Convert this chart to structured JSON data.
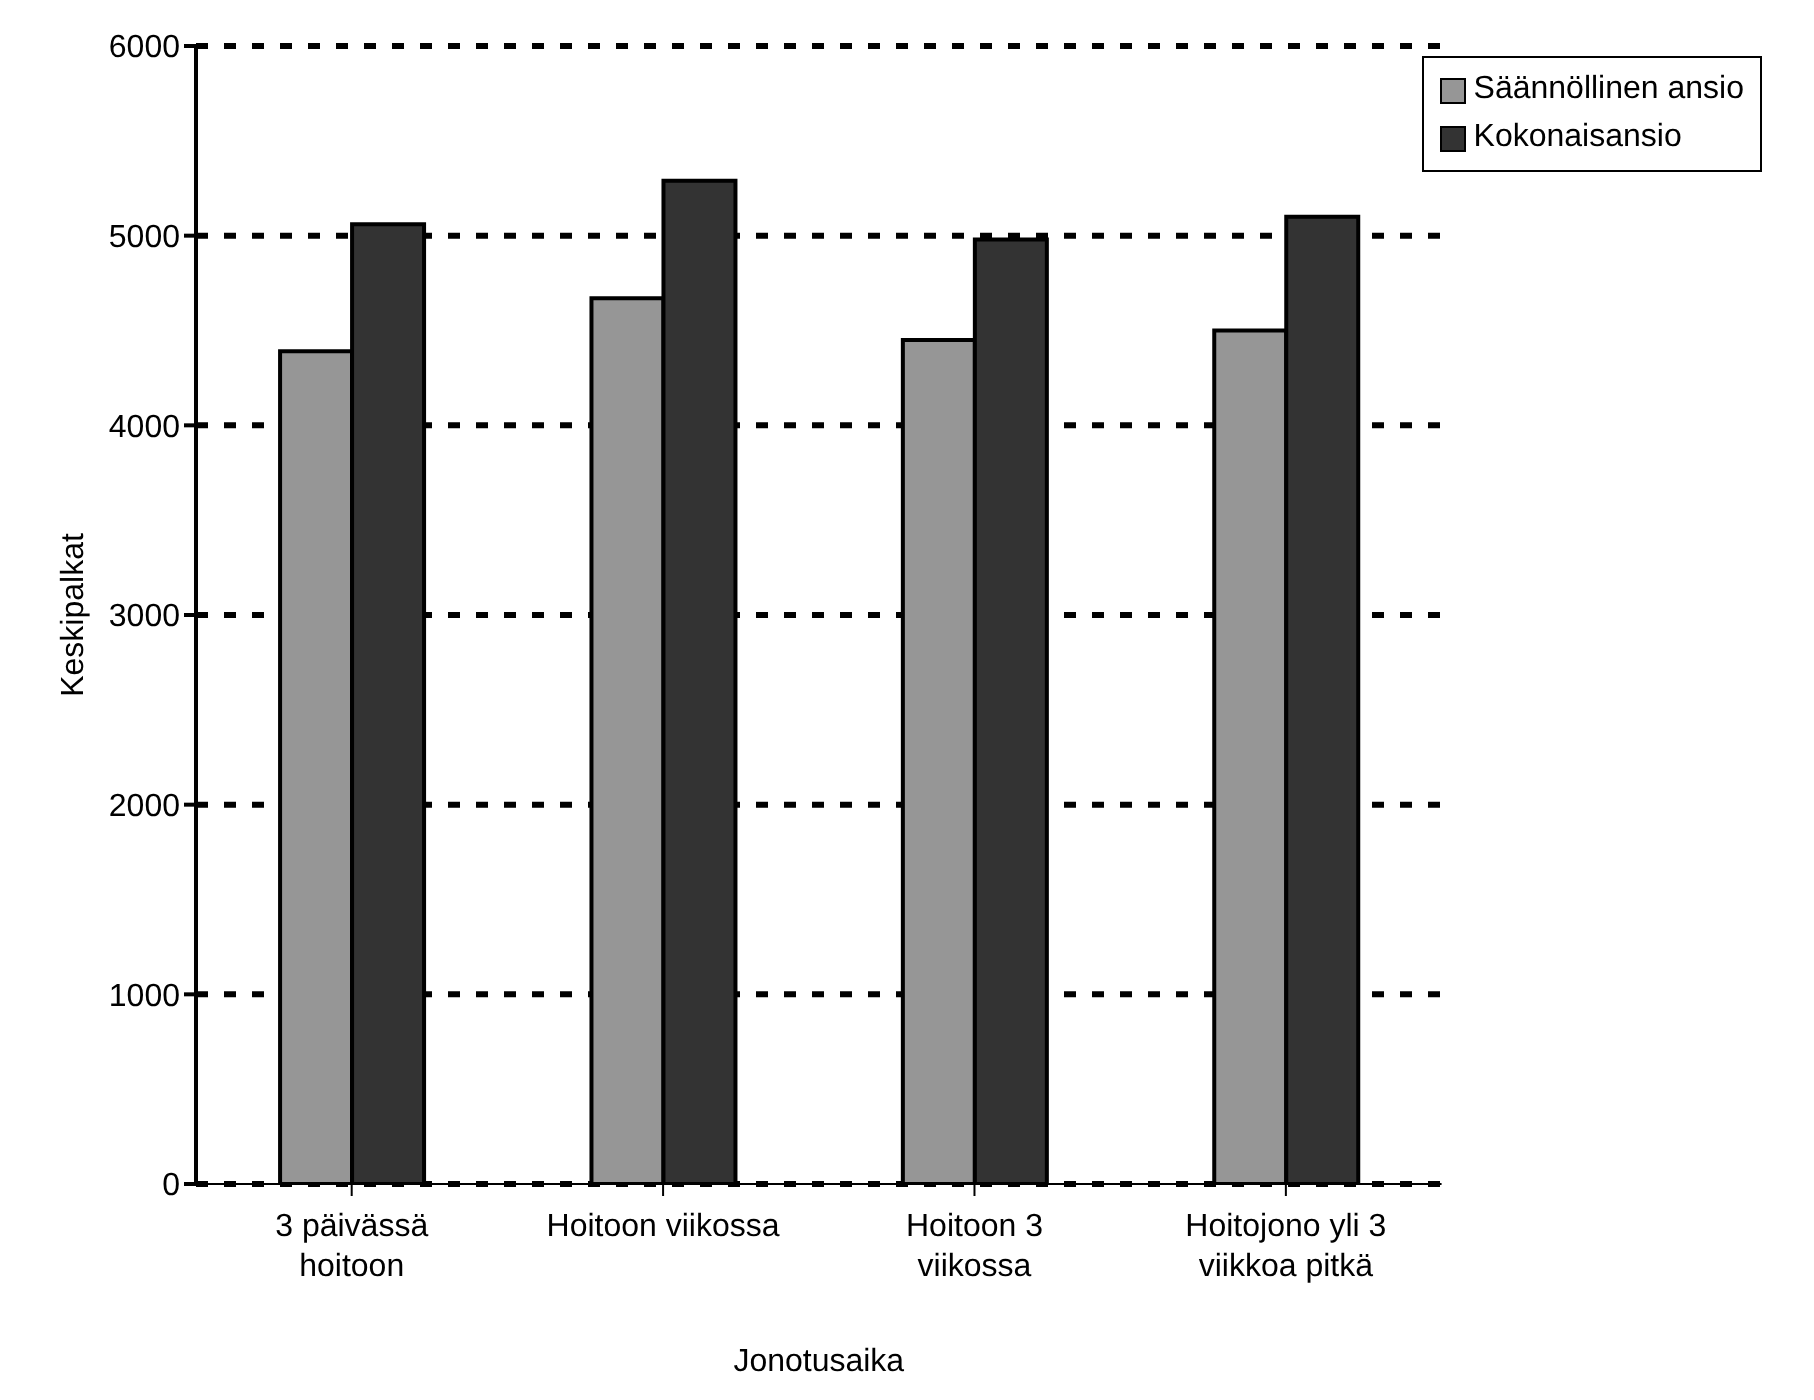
{
  "chart_data": {
    "type": "bar",
    "xlabel": "Jonotusaika",
    "ylabel": "Keskipalkat",
    "categories": [
      "3 päivässä hoitoon",
      "Hoitoon viikossa",
      "Hoitoon 3 viikossa",
      "Hoitojono yli 3 viikkoa pitkä"
    ],
    "series": [
      {
        "name": "Säännöllinen ansio",
        "color": "#969696",
        "values": [
          4390,
          4670,
          4450,
          4500
        ]
      },
      {
        "name": "Kokonaisansio",
        "color": "#333333",
        "values": [
          5060,
          5290,
          4980,
          5100
        ]
      }
    ],
    "ylim": [
      0,
      6000
    ],
    "yticks": [
      0,
      1000,
      2000,
      3000,
      4000,
      5000,
      6000
    ],
    "grid": "y",
    "legend": "top right"
  }
}
